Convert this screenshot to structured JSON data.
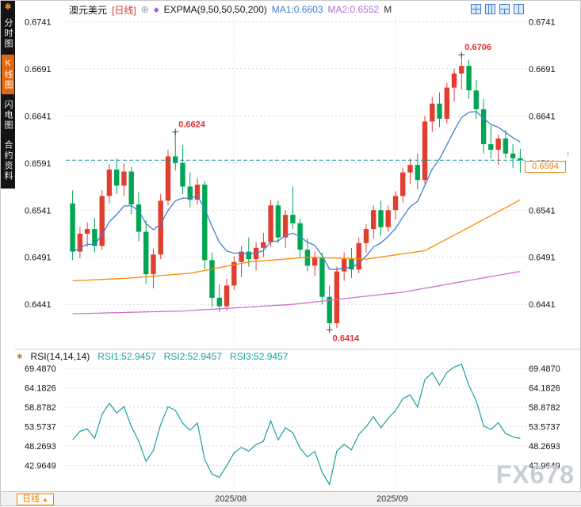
{
  "sidebar": {
    "items": [
      {
        "label": "分时图",
        "active": false
      },
      {
        "label": "K线图",
        "active": true
      },
      {
        "label": "闪电图",
        "active": false
      },
      {
        "label": "合约资料",
        "active": false
      }
    ]
  },
  "header": {
    "instrument": "澳元美元",
    "period": "[日线]",
    "indicator": "EXPMA(9,50,50,50,200)",
    "ma1": "MA1:0.6603",
    "ma2": "MA2:0.6552",
    "ma3_truncated": "M"
  },
  "rsi_header": {
    "name": "RSI(14,14,14)",
    "rsi1": "RSI1:52.9457",
    "rsi2": "RSI2:52.9457",
    "rsi3": "RSI3:52.9457"
  },
  "price_tag": {
    "value": "0.6594"
  },
  "footer": {
    "period": "日线"
  },
  "watermark": "FX678",
  "icons": {
    "app_icon_glyph": "✱",
    "expand_glyph": "⊕",
    "indicator_glyph": "◆",
    "rsi_indicator_glyph": "✱",
    "caret_up_glyph": "▲",
    "latest_arrow_glyph": "↑"
  },
  "chart_data": {
    "type": "candlestick",
    "title": "澳元美元 日线 (AUD/USD daily) with EXPMA overlays and RSI sub-chart",
    "price_panel": {
      "ylim": [
        0.64,
        0.6748
      ],
      "ticks": [
        "0.6741",
        "0.6691",
        "0.6641",
        "0.6591",
        "0.6541",
        "0.6491",
        "0.6441"
      ],
      "grid": true
    },
    "rsi_panel": {
      "ylim": [
        35.5,
        73.0
      ],
      "ticks": [
        "69.4870",
        "64.1826",
        "58.8782",
        "53.5737",
        "48.2693",
        "42.9649"
      ]
    },
    "x_ticks": [
      {
        "label": "2025/08",
        "idx": 22
      },
      {
        "label": "2025/09",
        "idx": 44
      }
    ],
    "candles_ohlc": [
      [
        0.6548,
        0.6562,
        0.6488,
        0.6497
      ],
      [
        0.6497,
        0.6523,
        0.649,
        0.6516
      ],
      [
        0.6516,
        0.6528,
        0.6502,
        0.6521
      ],
      [
        0.6521,
        0.6533,
        0.6496,
        0.6503
      ],
      [
        0.6503,
        0.6562,
        0.6499,
        0.6556
      ],
      [
        0.6556,
        0.659,
        0.6548,
        0.6584
      ],
      [
        0.6584,
        0.6596,
        0.6558,
        0.6567
      ],
      [
        0.6567,
        0.6591,
        0.6556,
        0.6582
      ],
      [
        0.6582,
        0.6587,
        0.6537,
        0.6547
      ],
      [
        0.6547,
        0.656,
        0.6508,
        0.6518
      ],
      [
        0.6518,
        0.653,
        0.6463,
        0.6473
      ],
      [
        0.6473,
        0.65,
        0.6458,
        0.6494
      ],
      [
        0.6494,
        0.6558,
        0.6489,
        0.6551
      ],
      [
        0.6551,
        0.6605,
        0.6546,
        0.6598
      ],
      [
        0.6598,
        0.6624,
        0.6583,
        0.6591
      ],
      [
        0.6591,
        0.661,
        0.6558,
        0.6566
      ],
      [
        0.6566,
        0.6581,
        0.6544,
        0.6552
      ],
      [
        0.6552,
        0.6575,
        0.6547,
        0.6568
      ],
      [
        0.6568,
        0.6572,
        0.6478,
        0.6488
      ],
      [
        0.6488,
        0.6496,
        0.6438,
        0.6448
      ],
      [
        0.6448,
        0.6462,
        0.6433,
        0.6439
      ],
      [
        0.6439,
        0.6468,
        0.6434,
        0.6461
      ],
      [
        0.6461,
        0.6492,
        0.6456,
        0.6486
      ],
      [
        0.6486,
        0.6503,
        0.647,
        0.6497
      ],
      [
        0.6497,
        0.6512,
        0.6481,
        0.6489
      ],
      [
        0.6489,
        0.6507,
        0.6477,
        0.6501
      ],
      [
        0.6501,
        0.6517,
        0.6491,
        0.6507
      ],
      [
        0.6507,
        0.6552,
        0.6502,
        0.6546
      ],
      [
        0.6546,
        0.6551,
        0.6506,
        0.6512
      ],
      [
        0.6512,
        0.6541,
        0.6501,
        0.6536
      ],
      [
        0.6536,
        0.6566,
        0.6521,
        0.6527
      ],
      [
        0.6527,
        0.6532,
        0.6491,
        0.6499
      ],
      [
        0.6499,
        0.6511,
        0.6476,
        0.6482
      ],
      [
        0.6482,
        0.6497,
        0.6471,
        0.6491
      ],
      [
        0.6491,
        0.6496,
        0.6441,
        0.6449
      ],
      [
        0.6449,
        0.6461,
        0.6414,
        0.6421
      ],
      [
        0.6421,
        0.6481,
        0.6416,
        0.6476
      ],
      [
        0.6476,
        0.6496,
        0.6466,
        0.6489
      ],
      [
        0.6489,
        0.6501,
        0.6469,
        0.6478
      ],
      [
        0.6478,
        0.6512,
        0.6474,
        0.6506
      ],
      [
        0.6506,
        0.6526,
        0.6496,
        0.6521
      ],
      [
        0.6521,
        0.6546,
        0.6511,
        0.6541
      ],
      [
        0.6541,
        0.6551,
        0.6514,
        0.6523
      ],
      [
        0.6523,
        0.6546,
        0.6518,
        0.6541
      ],
      [
        0.6541,
        0.6561,
        0.6531,
        0.6556
      ],
      [
        0.6556,
        0.6586,
        0.6549,
        0.6581
      ],
      [
        0.6581,
        0.6596,
        0.6569,
        0.6589
      ],
      [
        0.6589,
        0.6601,
        0.6563,
        0.6573
      ],
      [
        0.6573,
        0.6641,
        0.6569,
        0.6635
      ],
      [
        0.6635,
        0.6661,
        0.6624,
        0.6654
      ],
      [
        0.6654,
        0.6666,
        0.6629,
        0.6638
      ],
      [
        0.6638,
        0.6676,
        0.6633,
        0.6671
      ],
      [
        0.6671,
        0.6691,
        0.6656,
        0.6686
      ],
      [
        0.6686,
        0.6706,
        0.6669,
        0.6694
      ],
      [
        0.6694,
        0.6701,
        0.6659,
        0.6668
      ],
      [
        0.6668,
        0.6679,
        0.6638,
        0.6648
      ],
      [
        0.6648,
        0.6659,
        0.6601,
        0.6611
      ],
      [
        0.6611,
        0.6631,
        0.6596,
        0.6605
      ],
      [
        0.6605,
        0.6621,
        0.6589,
        0.6617
      ],
      [
        0.6617,
        0.6626,
        0.6596,
        0.6601
      ],
      [
        0.6601,
        0.6611,
        0.6586,
        0.6596
      ],
      [
        0.6596,
        0.6606,
        0.6581,
        0.6594
      ]
    ],
    "ma_lines": [
      {
        "name": "EXPMA9",
        "color": "#3f7fd0",
        "compute": "ema",
        "period": 9
      },
      {
        "name": "EXPMA50",
        "color": "#ff8a00",
        "idx": [
          0,
          8,
          16,
          24,
          32,
          40,
          48,
          56,
          61
        ],
        "values": [
          0.6466,
          0.6469,
          0.6474,
          0.6486,
          0.6491,
          0.6489,
          0.6498,
          0.6531,
          0.6552
        ]
      },
      {
        "name": "EXPMA200",
        "color": "#cf6fd2",
        "idx": [
          0,
          15,
          30,
          45,
          61
        ],
        "values": [
          0.6431,
          0.6434,
          0.6441,
          0.6454,
          0.6476
        ]
      }
    ],
    "rsi": {
      "period": 14,
      "color": "#18a0a0",
      "last_values": [
        52.9457,
        52.9457,
        52.9457
      ]
    },
    "last_price": 0.6594,
    "dashed_line_color": "#1a9a9a",
    "annotations": [
      {
        "text": "0.6624",
        "idx": 14,
        "price": 0.6624,
        "pos": "above"
      },
      {
        "text": "0.6706",
        "idx": 53,
        "price": 0.6706,
        "pos": "above"
      },
      {
        "text": "0.6414",
        "idx": 35,
        "price": 0.6414,
        "pos": "below"
      }
    ],
    "colors": {
      "up": "#e23e30",
      "down": "#00a651",
      "grid": "#d9d9d9",
      "annotation": "#e03030"
    }
  }
}
